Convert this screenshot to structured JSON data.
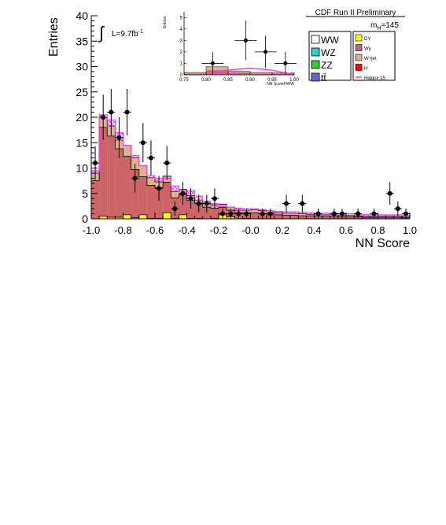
{
  "chart_data": {
    "type": "bar",
    "title": "CDF Run II Preliminary",
    "xlabel": "NN Score",
    "ylabel": "Entries",
    "xlim": [
      -1.0,
      1.0
    ],
    "ylim": [
      0,
      40
    ],
    "x_ticks": [
      "-1.0",
      "-0.8",
      "-0.6",
      "-0.4",
      "-0.2",
      "-0.0",
      "0.2",
      "0.4",
      "0.6",
      "0.8",
      "1.0"
    ],
    "y_ticks": [
      "0",
      "5",
      "10",
      "15",
      "20",
      "25",
      "30",
      "35",
      "40"
    ],
    "bin_edges": [
      -1.0,
      -0.95,
      -0.9,
      -0.85,
      -0.8,
      -0.75,
      -0.7,
      -0.65,
      -0.6,
      -0.55,
      -0.5,
      -0.45,
      -0.4,
      -0.35,
      -0.3,
      -0.25,
      -0.2,
      -0.15,
      -0.1,
      -0.05,
      0.0,
      0.05,
      0.1,
      0.15,
      0.2,
      0.25,
      0.3,
      0.35,
      0.4,
      0.45,
      0.5,
      0.55,
      0.6,
      0.65,
      0.7,
      0.75,
      0.8,
      0.85,
      0.9,
      0.95,
      1.0
    ],
    "stacks": [
      {
        "name": "DY",
        "color": "#ffff00",
        "values": [
          0,
          0.5,
          0.3,
          0.3,
          0.8,
          0.2,
          0.8,
          0.1,
          0.1,
          1.2,
          0.1,
          0.8,
          0.1,
          0.1,
          0,
          0.1,
          0.8,
          0.4,
          0,
          0.1,
          0,
          0,
          0,
          0,
          0,
          0,
          0,
          0,
          0,
          0,
          0,
          0,
          0,
          0,
          0,
          0,
          0,
          0,
          0,
          0
        ]
      },
      {
        "name": "Wγ",
        "color": "#cc6666",
        "values": [
          7.5,
          17.5,
          16,
          13.5,
          11.5,
          9.5,
          7.5,
          6.5,
          6,
          6,
          4,
          4,
          3.5,
          3,
          2.3,
          2,
          1.5,
          1.3,
          1.2,
          1.1,
          1.2,
          1,
          0.8,
          0.8,
          0.7,
          0.7,
          0.6,
          0.6,
          0.5,
          0.5,
          0.5,
          0.4,
          0.4,
          0.4,
          0.3,
          0.3,
          0.3,
          0.3,
          0.3,
          0.2
        ]
      },
      {
        "name": "W+jet",
        "color": "#dcb48c",
        "values": [
          1.5,
          2,
          2,
          1.7,
          2.2,
          2.3,
          2.2,
          1.5,
          1.2,
          1.2,
          1.3,
          1,
          1,
          0.6,
          0.8,
          0.6,
          0.6,
          0.6,
          0.5,
          0.5,
          0.6,
          0.6,
          0.5,
          0.4,
          0.4,
          0.4,
          0.4,
          0.3,
          0.3,
          0.3,
          0.3,
          0.3,
          0.3,
          0.2,
          0.2,
          0.2,
          0.2,
          0.2,
          0.2,
          0.2
        ]
      }
    ],
    "signal_uncertainty_band": {
      "color": "#ff33ff",
      "values": [
        9.5,
        20.5,
        19.5,
        17,
        14.5,
        12.5,
        10.5,
        8.5,
        8,
        8,
        6.5,
        5.5,
        5.5,
        4.5,
        3.5,
        3,
        2.7,
        2.3,
        2.1,
        2,
        2,
        1.8,
        1.6,
        1.5,
        1.4,
        1.4,
        1.3,
        1.2,
        1.1,
        1.1,
        1.1,
        1,
        1,
        0.9,
        0.9,
        0.9,
        0.8,
        0.8,
        0.8,
        0.7
      ]
    },
    "data_points": {
      "x": [
        -0.975,
        -0.925,
        -0.875,
        -0.825,
        -0.775,
        -0.725,
        -0.675,
        -0.625,
        -0.575,
        -0.525,
        -0.475,
        -0.425,
        -0.375,
        -0.325,
        -0.275,
        -0.225,
        -0.175,
        -0.125,
        -0.075,
        -0.025,
        0.075,
        0.125,
        0.225,
        0.325,
        0.425,
        0.525,
        0.575,
        0.675,
        0.775,
        0.875,
        0.925,
        0.975
      ],
      "y": [
        11,
        20,
        21,
        16,
        21,
        8,
        15,
        12,
        6,
        11,
        2,
        5,
        4,
        3,
        3,
        4,
        1,
        1,
        1,
        1,
        1,
        1,
        3,
        3,
        1,
        1,
        1,
        1,
        1,
        5,
        2,
        1
      ]
    },
    "annotations": {
      "luminosity_prefix": "L=9.7fb",
      "luminosity_sup": "-1",
      "mass_label_base": "m",
      "mass_label_sub": "H",
      "mass_label_value": "=145"
    },
    "legend": {
      "placement": "top-right",
      "entries_left": [
        {
          "label": "WW",
          "color": "#ffffff"
        },
        {
          "label": "WZ",
          "color": "#33cccc"
        },
        {
          "label": "ZZ",
          "color": "#33cc33"
        },
        {
          "label": "tt̄",
          "color": "#6666cc"
        }
      ],
      "entries_right": [
        {
          "label": "DY",
          "color": "#ffff00"
        },
        {
          "label": "Wγ",
          "color": "#cc6666"
        },
        {
          "label": "W+jet",
          "color": "#dcb48c"
        },
        {
          "label": "H",
          "color": "#ff0000"
        },
        {
          "label": "Higgsx 15",
          "color": "#ff0000",
          "line": true
        }
      ]
    },
    "inset": {
      "xlabel": "NN ScoreHWW",
      "ylabel": "Entries",
      "xlim": [
        0.75,
        1.0
      ],
      "ylim": [
        0,
        5.5
      ],
      "x_ticks": [
        "0.75",
        "0.80",
        "0.85",
        "0.90",
        "0.95",
        "1.00"
      ],
      "y_ticks": [
        "0",
        "1",
        "2",
        "3",
        "4",
        "5"
      ],
      "bin_edges": [
        0.75,
        0.8,
        0.85,
        0.9,
        0.95,
        1.0
      ],
      "stack_total": [
        0.2,
        0.7,
        0.3,
        0.2,
        0.15
      ],
      "stack_wjet_top": [
        0.2,
        0.7,
        0.3,
        0.2,
        0.15
      ],
      "stack_wg_top": [
        0.1,
        0.4,
        0.2,
        0.1,
        0.1
      ],
      "signal_curve": {
        "x": [
          0.8,
          0.85,
          0.875,
          0.9,
          0.925,
          0.95,
          0.975,
          1.0
        ],
        "y": [
          0.2,
          0.4,
          0.5,
          0.55,
          0.5,
          0.4,
          0.2,
          0.05
        ]
      },
      "data_points": {
        "x": [
          0.815,
          0.89,
          0.935,
          0.98
        ],
        "y": [
          1,
          3,
          2,
          1
        ]
      }
    }
  }
}
